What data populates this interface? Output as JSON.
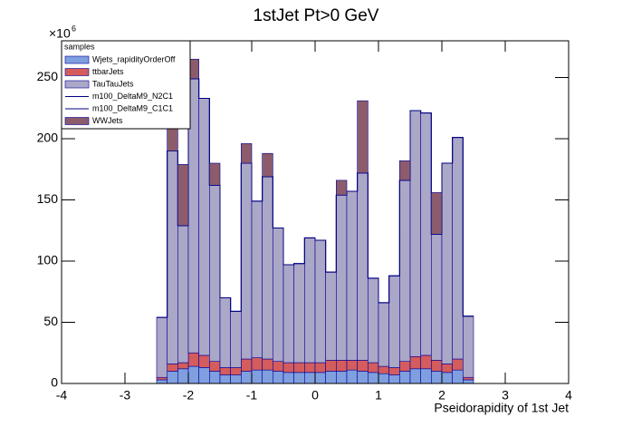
{
  "chart_data": {
    "type": "stacked_histogram",
    "title": "1stJet Pt>0 GeV",
    "x_label": "Pseidorapidity of 1st Jet",
    "y_multiplier": "×10",
    "y_exponent": "6",
    "legend_title": "samples",
    "legend_position": "top-left",
    "xlim": [
      -4,
      4
    ],
    "xticks": [
      -4,
      -3,
      -2,
      -1,
      0,
      1,
      2,
      3,
      4
    ],
    "ylim": [
      0,
      280
    ],
    "yticks": [
      0,
      50,
      100,
      150,
      200,
      250
    ],
    "bins": [
      -2.5,
      -2.3333,
      -2.1667,
      -2,
      -1.8333,
      -1.6667,
      -1.5,
      -1.3333,
      -1.1667,
      -1,
      -0.8333,
      -0.6667,
      -0.5,
      -0.3333,
      -0.1667,
      0,
      0.1667,
      0.3333,
      0.5,
      0.6667,
      0.8333,
      1,
      1.1667,
      1.3333,
      1.5,
      1.6667,
      1.8333,
      2,
      2.1667,
      2.3333,
      2.5
    ],
    "series": [
      {
        "name": "Wjets_rapidityOrderOff",
        "color": "#7f9fdf",
        "style": "fill",
        "values": [
          3,
          10,
          12,
          14,
          13,
          10,
          7,
          7,
          10,
          11,
          11,
          10,
          9,
          9,
          9,
          9,
          10,
          10,
          11,
          10,
          9,
          8,
          7,
          10,
          12,
          12,
          10,
          9,
          11,
          3
        ]
      },
      {
        "name": "ttbarJets",
        "color": "#d45c5c",
        "style": "fill",
        "values": [
          2,
          6,
          5,
          11,
          10,
          8,
          6,
          6,
          10,
          10,
          9,
          8,
          8,
          8,
          8,
          8,
          9,
          9,
          8,
          9,
          8,
          6,
          6,
          8,
          10,
          11,
          9,
          7,
          9,
          2
        ]
      },
      {
        "name": "TauTauJets",
        "color": "#aba7c7",
        "style": "fill",
        "values": [
          49,
          174,
          112,
          224,
          210,
          144,
          57,
          46,
          160,
          128,
          149,
          109,
          80,
          81,
          102,
          100,
          72,
          135,
          138,
          153,
          69,
          52,
          75,
          148,
          201,
          198,
          103,
          164,
          181,
          50
        ]
      },
      {
        "name": "m100_DeltaM9_N2C1",
        "color": "#000080",
        "style": "line",
        "values": [
          0,
          0,
          0,
          0,
          0,
          0,
          0,
          0,
          0,
          0,
          0,
          0,
          0,
          0,
          0,
          0,
          0,
          0,
          0,
          0,
          0,
          0,
          0,
          0,
          0,
          0,
          0,
          0,
          0,
          0
        ]
      },
      {
        "name": "m100_DeltaM9_C1C1",
        "color": "#000080",
        "style": "line",
        "values": [
          0,
          0,
          0,
          0,
          0,
          0,
          0,
          0,
          0,
          0,
          0,
          0,
          0,
          0,
          0,
          0,
          0,
          0,
          0,
          0,
          0,
          0,
          0,
          0,
          0,
          0,
          0,
          0,
          0,
          0
        ]
      },
      {
        "name": "WWJets",
        "color": "#8c5c6c",
        "style": "fill",
        "values": [
          0,
          18,
          50,
          16,
          0,
          18,
          0,
          0,
          16,
          0,
          19,
          0,
          0,
          0,
          0,
          0,
          0,
          12,
          0,
          59,
          0,
          0,
          0,
          16,
          0,
          0,
          34,
          0,
          0,
          0
        ]
      }
    ]
  }
}
